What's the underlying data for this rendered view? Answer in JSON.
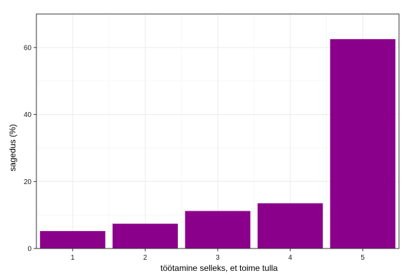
{
  "chart_data": {
    "type": "bar",
    "title": "",
    "xlabel": "töötamine selleks, et toime tulla",
    "ylabel": "sagedus (%)",
    "categories": [
      "1",
      "2",
      "3",
      "4",
      "5"
    ],
    "values": [
      5.2,
      7.4,
      11.2,
      13.5,
      62.5
    ],
    "ylim": [
      0,
      70
    ],
    "yticks": [
      0,
      20,
      40,
      60
    ],
    "yticks_labels": [
      "0",
      "20",
      "40",
      "60"
    ],
    "grid": true,
    "legend": "none",
    "bar_color": "#8b008b",
    "grid_color": "#ebebeb",
    "panel_border_color": "#333333"
  }
}
